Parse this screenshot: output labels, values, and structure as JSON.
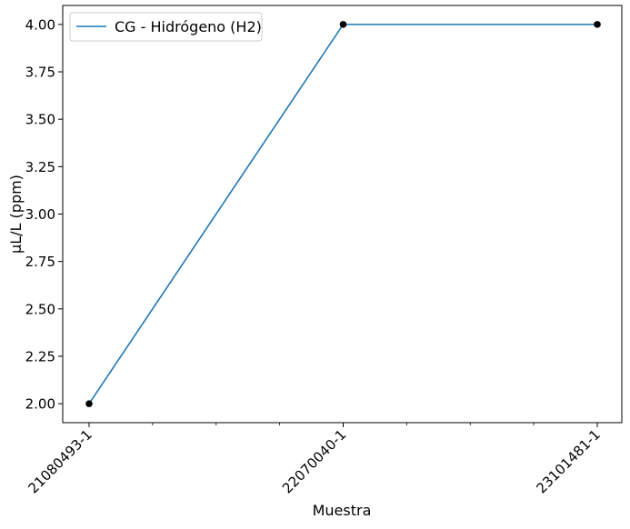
{
  "chart_data": {
    "type": "line",
    "title": "",
    "xlabel": "Muestra",
    "ylabel": "µL/L (ppm)",
    "categories": [
      "21080493-1",
      "22070040-1",
      "23101481-1"
    ],
    "series": [
      {
        "name": "CG - Hidrógeno (H2)",
        "values": [
          2.0,
          4.0,
          4.0
        ],
        "color": "#1f77b4",
        "marker_color": "#000000"
      }
    ],
    "ylim": [
      1.9,
      4.1
    ],
    "yticks": [
      "2.00",
      "2.25",
      "2.50",
      "2.75",
      "3.00",
      "3.25",
      "3.50",
      "3.75",
      "4.00"
    ],
    "grid": false,
    "legend_position": "top-left"
  }
}
